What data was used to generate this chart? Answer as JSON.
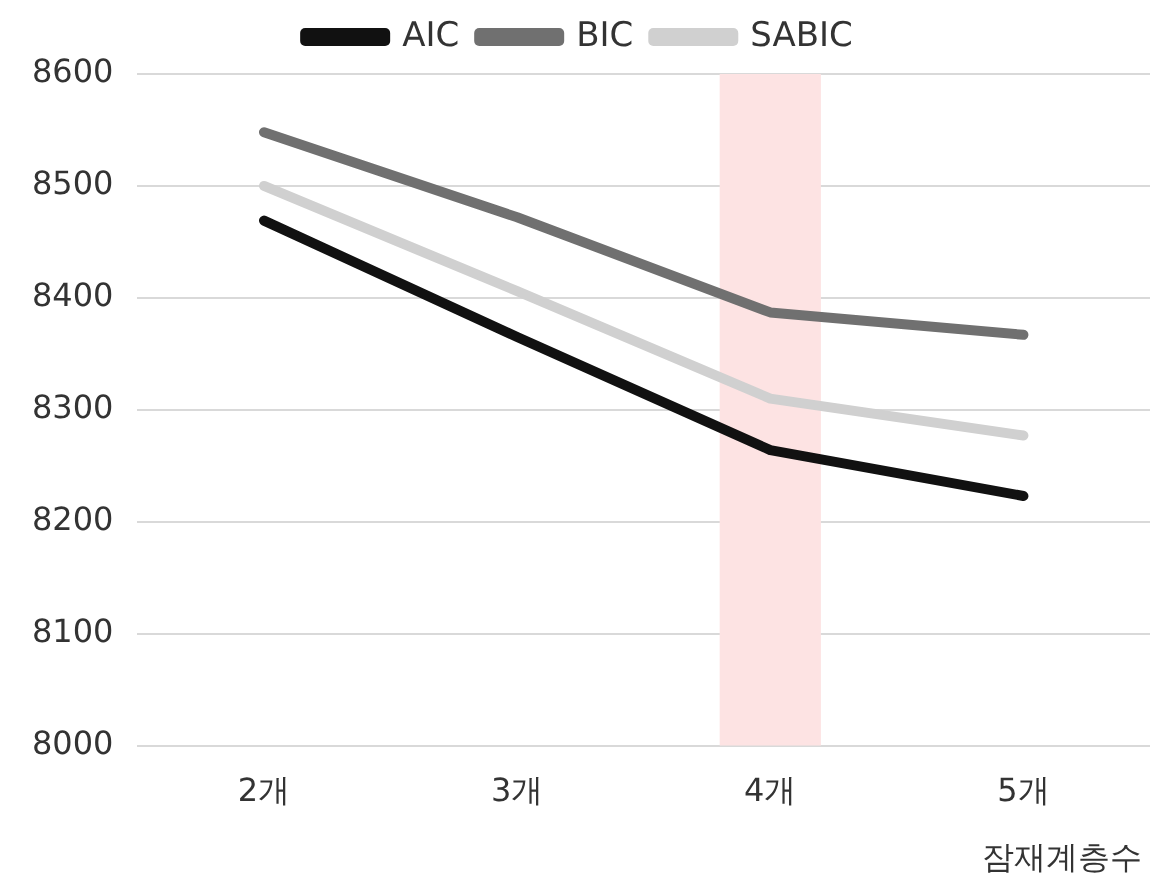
{
  "chart_data": {
    "type": "line",
    "xlabel": "잠재계층수",
    "categories": [
      "2개",
      "3개",
      "4개",
      "5개"
    ],
    "series": [
      {
        "name": "AIC",
        "color": "#111111",
        "values": [
          8469,
          8365,
          8264,
          8223
        ]
      },
      {
        "name": "BIC",
        "color": "#707070",
        "values": [
          8548,
          8472,
          8387,
          8367
        ]
      },
      {
        "name": "SABIC",
        "color": "#d0d0d0",
        "values": [
          8500,
          8406,
          8310,
          8277
        ]
      }
    ],
    "ylim": [
      8000,
      8600
    ],
    "yticks": [
      8000,
      8100,
      8200,
      8300,
      8400,
      8500,
      8600
    ],
    "grid": "y",
    "legend": "top",
    "marker": "none",
    "line_style": "solid",
    "bands": [
      {
        "axis": "x",
        "from": "4개",
        "to": "4개",
        "color": "#fde3e3"
      }
    ]
  }
}
